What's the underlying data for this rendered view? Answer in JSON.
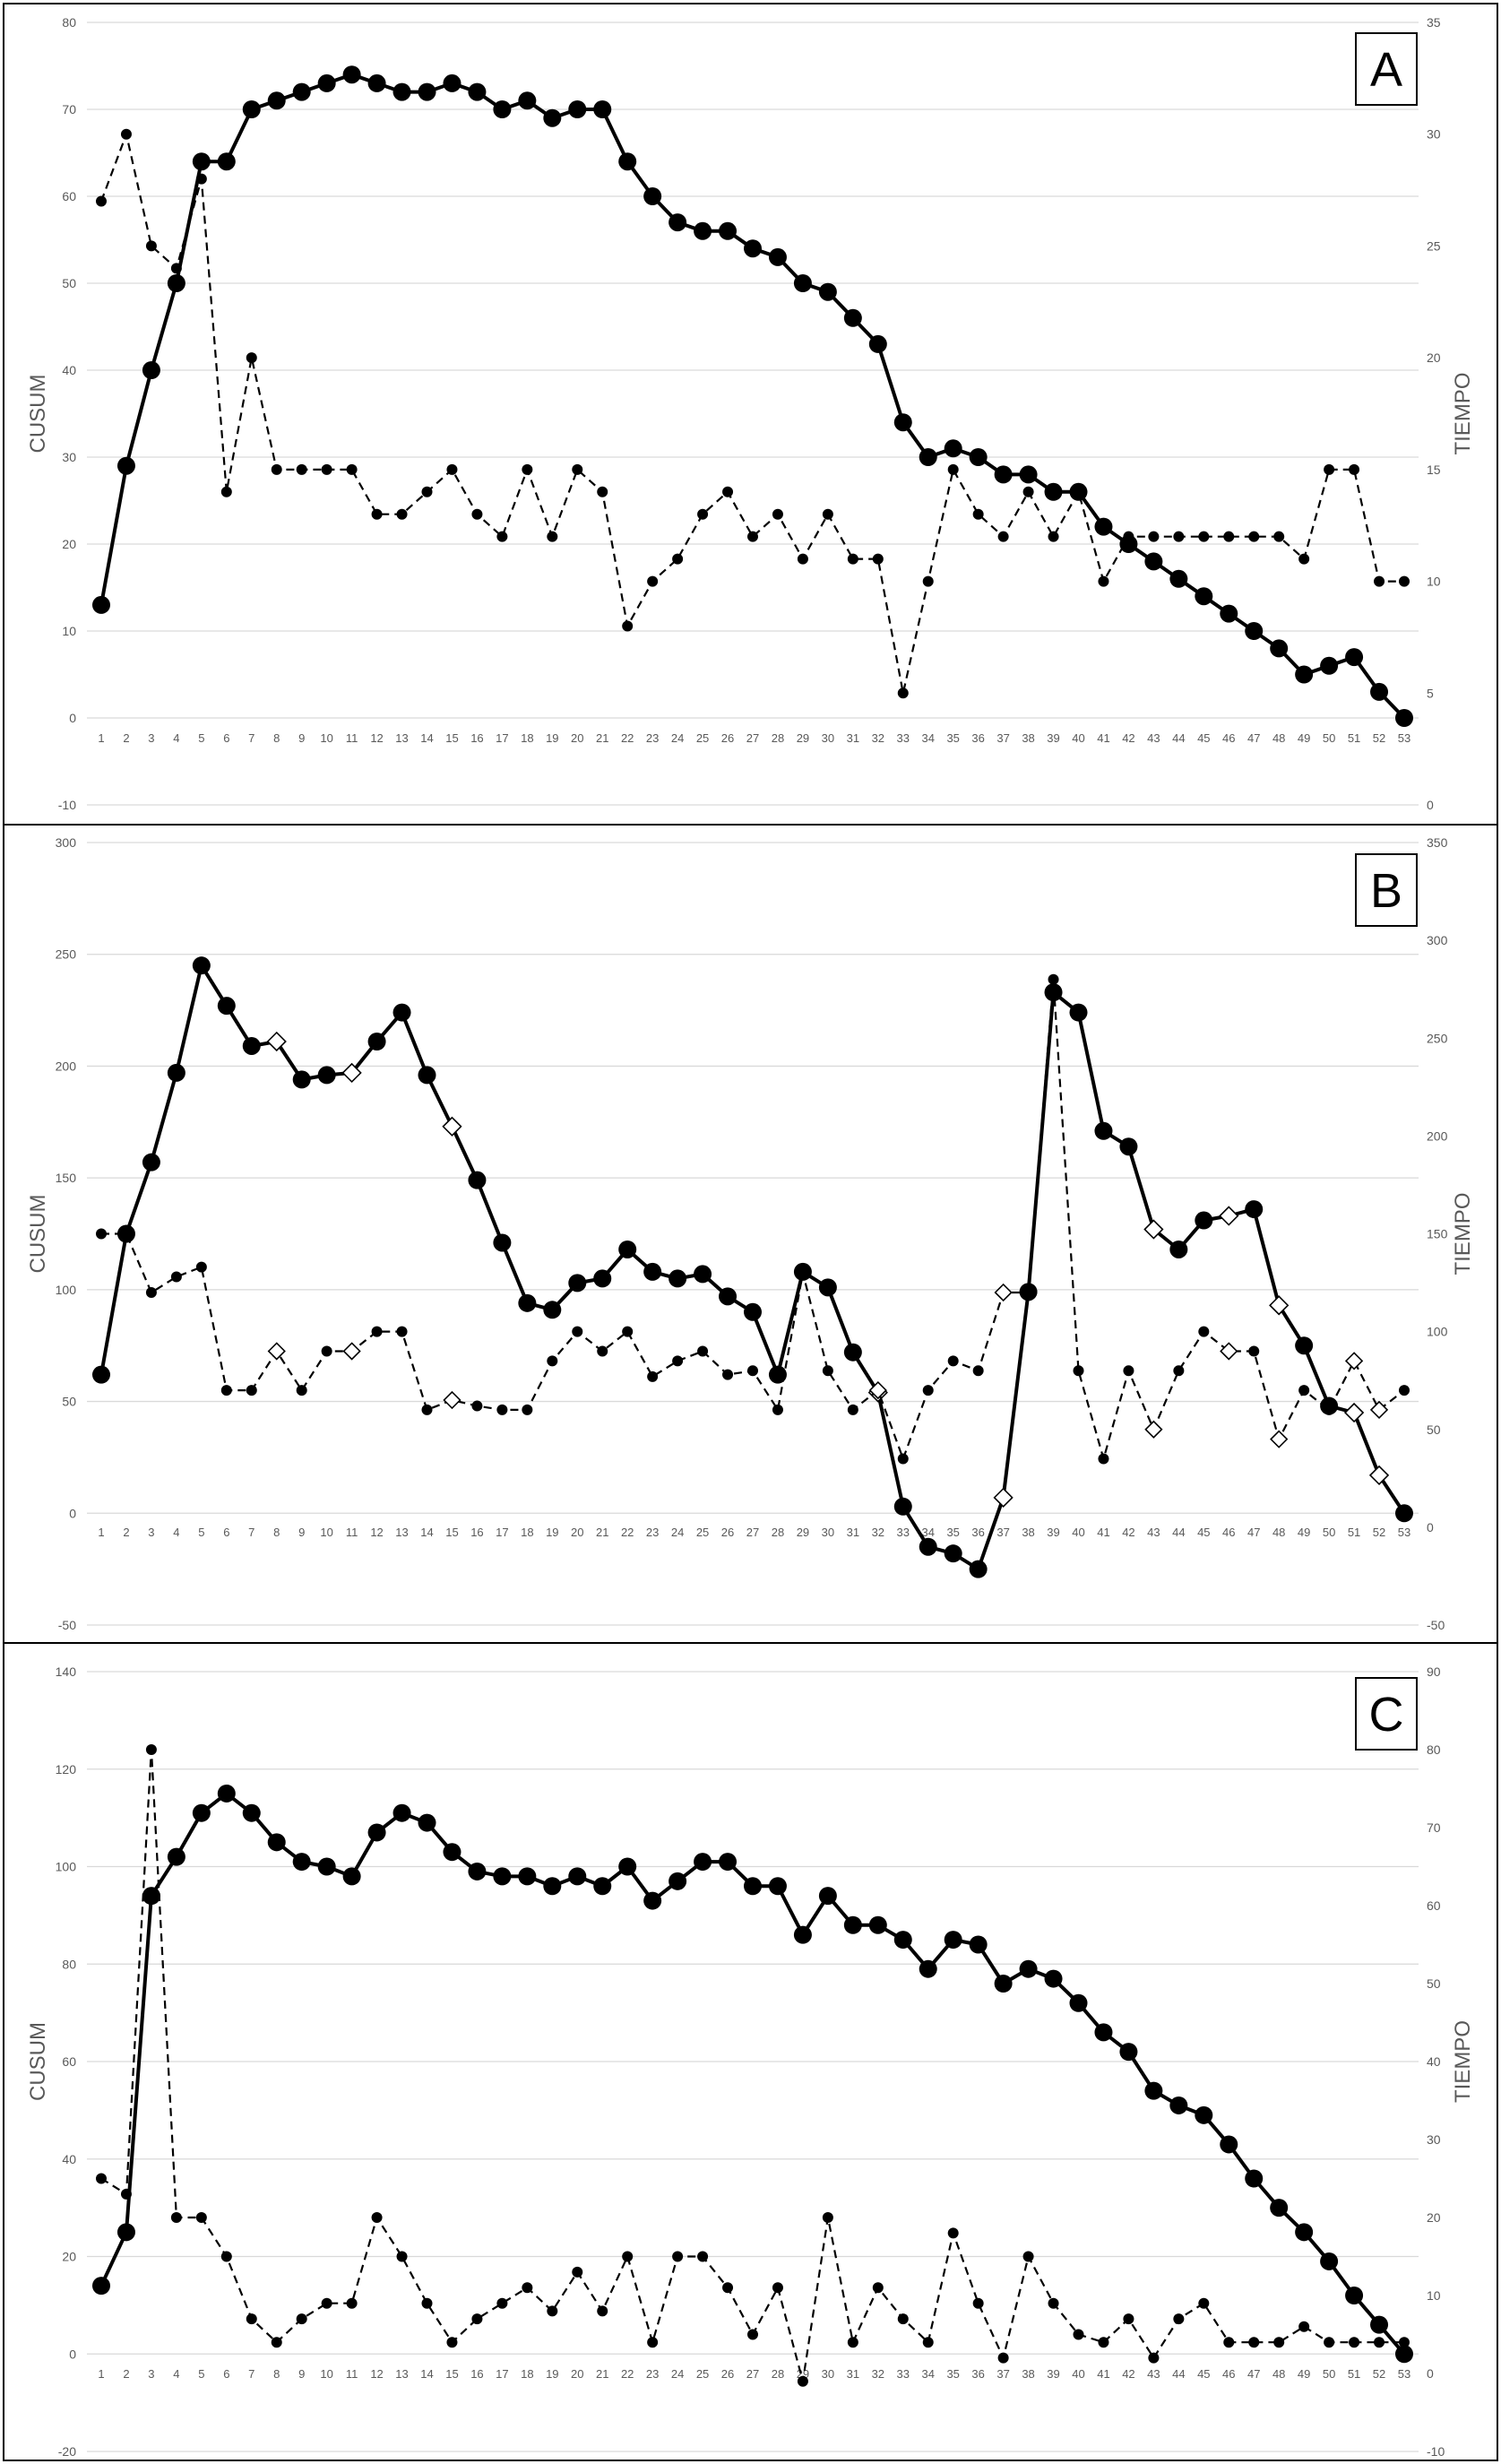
{
  "chart_data": [
    {
      "type": "line",
      "panel_label": "A",
      "x": [
        1,
        2,
        3,
        4,
        5,
        6,
        7,
        8,
        9,
        10,
        11,
        12,
        13,
        14,
        15,
        16,
        17,
        18,
        19,
        20,
        21,
        22,
        23,
        24,
        25,
        26,
        27,
        28,
        29,
        30,
        31,
        32,
        33,
        34,
        35,
        36,
        37,
        38,
        39,
        40,
        41,
        42,
        43,
        44,
        45,
        46,
        47,
        48,
        49,
        50,
        51,
        52,
        53
      ],
      "ylabel": "CUSUM",
      "y2label": "TIEMPO",
      "ylim": [
        -10,
        80
      ],
      "ystep": 10,
      "y2lim": [
        0,
        35
      ],
      "y2step": 5,
      "grid": true,
      "series": [
        {
          "axis": "left",
          "style": "solid",
          "values": [
            13,
            29,
            40,
            50,
            64,
            64,
            70,
            71,
            72,
            73,
            74,
            73,
            72,
            72,
            73,
            72,
            70,
            71,
            69,
            70,
            70,
            64,
            60,
            57,
            56,
            56,
            54,
            53,
            50,
            49,
            46,
            43,
            34,
            30,
            31,
            30,
            28,
            28,
            26,
            26,
            22,
            20,
            18,
            16,
            14,
            12,
            10,
            8,
            5,
            6,
            7,
            3,
            0
          ]
        },
        {
          "axis": "right",
          "style": "dashed",
          "values": [
            27,
            30,
            25,
            24,
            28,
            14,
            20,
            15,
            15,
            15,
            15,
            13,
            13,
            14,
            15,
            13,
            12,
            15,
            12,
            15,
            14,
            8,
            10,
            11,
            13,
            14,
            12,
            13,
            11,
            13,
            11,
            11,
            5,
            10,
            15,
            13,
            12,
            14,
            12,
            14,
            10,
            12,
            12,
            12,
            12,
            12,
            12,
            12,
            11,
            15,
            15,
            10,
            10
          ]
        }
      ]
    },
    {
      "type": "line",
      "panel_label": "B",
      "x": [
        1,
        2,
        3,
        4,
        5,
        6,
        7,
        8,
        9,
        10,
        11,
        12,
        13,
        14,
        15,
        16,
        17,
        18,
        19,
        20,
        21,
        22,
        23,
        24,
        25,
        26,
        27,
        28,
        29,
        30,
        31,
        32,
        33,
        34,
        35,
        36,
        37,
        38,
        39,
        40,
        41,
        42,
        43,
        44,
        45,
        46,
        47,
        48,
        49,
        50,
        51,
        52,
        53
      ],
      "ylabel": "CUSUM",
      "y2label": "TIEMPO",
      "ylim": [
        -50,
        300
      ],
      "ystep": 50,
      "y2lim": [
        -50,
        350
      ],
      "y2step": 50,
      "grid": true,
      "series": [
        {
          "axis": "left",
          "style": "solid",
          "values": [
            62,
            125,
            157,
            197,
            245,
            227,
            209,
            211,
            194,
            196,
            197,
            211,
            224,
            196,
            173,
            149,
            121,
            94,
            91,
            103,
            105,
            118,
            108,
            105,
            107,
            97,
            90,
            62,
            108,
            101,
            72,
            54,
            3,
            -15,
            -18,
            -25,
            7,
            99,
            233,
            224,
            171,
            164,
            127,
            118,
            131,
            133,
            136,
            93,
            75,
            48,
            45,
            17,
            0
          ],
          "open_markers": [
            8,
            11,
            15,
            32,
            37,
            43,
            46,
            48,
            51,
            52
          ]
        },
        {
          "axis": "right",
          "style": "dashed",
          "values": [
            150,
            150,
            120,
            128,
            133,
            70,
            70,
            90,
            70,
            90,
            90,
            100,
            100,
            60,
            65,
            62,
            60,
            60,
            85,
            100,
            90,
            100,
            77,
            85,
            90,
            78,
            80,
            60,
            130,
            80,
            60,
            70,
            35,
            70,
            85,
            80,
            120,
            120,
            280,
            80,
            35,
            80,
            50,
            80,
            100,
            90,
            90,
            45,
            70,
            60,
            85,
            60,
            70
          ],
          "open_markers": [
            8,
            11,
            15,
            32,
            37,
            43,
            46,
            48,
            51,
            52
          ]
        }
      ]
    },
    {
      "type": "line",
      "panel_label": "C",
      "x": [
        1,
        2,
        3,
        4,
        5,
        6,
        7,
        8,
        9,
        10,
        11,
        12,
        13,
        14,
        15,
        16,
        17,
        18,
        19,
        20,
        21,
        22,
        23,
        24,
        25,
        26,
        27,
        28,
        29,
        30,
        31,
        32,
        33,
        34,
        35,
        36,
        37,
        38,
        39,
        40,
        41,
        42,
        43,
        44,
        45,
        46,
        47,
        48,
        49,
        50,
        51,
        52,
        53
      ],
      "ylabel": "CUSUM",
      "y2label": "TIEMPO",
      "ylim": [
        -20,
        140
      ],
      "ystep": 20,
      "y2lim": [
        -10,
        90
      ],
      "y2step": 10,
      "grid": true,
      "series": [
        {
          "axis": "left",
          "style": "solid",
          "values": [
            14,
            25,
            94,
            102,
            111,
            115,
            111,
            105,
            101,
            100,
            98,
            107,
            111,
            109,
            103,
            99,
            98,
            98,
            96,
            98,
            96,
            100,
            93,
            97,
            101,
            101,
            96,
            96,
            86,
            94,
            88,
            88,
            85,
            79,
            85,
            84,
            76,
            79,
            77,
            72,
            66,
            62,
            54,
            51,
            49,
            43,
            36,
            30,
            25,
            19,
            12,
            6,
            0
          ]
        },
        {
          "axis": "right",
          "style": "dashed",
          "values": [
            25,
            23,
            80,
            20,
            20,
            15,
            7,
            4,
            7,
            9,
            9,
            20,
            15,
            9,
            4,
            7,
            9,
            11,
            8,
            13,
            8,
            15,
            4,
            15,
            15,
            11,
            5,
            11,
            -1,
            20,
            4,
            11,
            7,
            4,
            18,
            9,
            2,
            15,
            9,
            5,
            4,
            7,
            2,
            7,
            9,
            4,
            4,
            4,
            6,
            4,
            4,
            4,
            4
          ]
        }
      ]
    }
  ],
  "colors": {
    "series_line": "#000000",
    "grid": "#d9d9d9",
    "tick_text": "#595959",
    "open_marker_fill": "#ffffff"
  }
}
